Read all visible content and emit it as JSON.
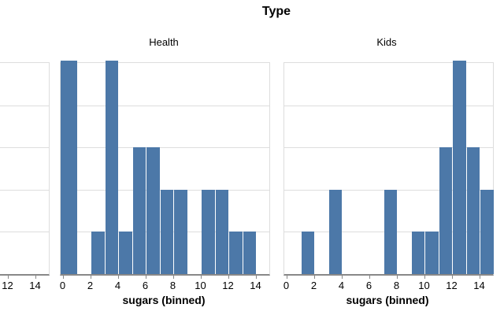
{
  "chart_data": {
    "type": "bar",
    "subtype": "faceted-histogram",
    "title": "Type",
    "x_axis": {
      "title": "sugars (binned)",
      "tick_values": [
        0,
        2,
        4,
        6,
        8,
        10,
        12,
        14
      ],
      "bin_width": 1,
      "domain": [
        -0.2,
        15.2
      ]
    },
    "y_axis": {
      "max": 5,
      "gridline_interval": 1,
      "labels_visible": false
    },
    "facets": [
      {
        "label": "Health",
        "counts": [
          5,
          0,
          1,
          5,
          1,
          3,
          3,
          2,
          2,
          0,
          2,
          2,
          1,
          1,
          0
        ]
      },
      {
        "label": "Kids",
        "counts": [
          0,
          1,
          0,
          2,
          0,
          0,
          0,
          2,
          0,
          1,
          1,
          3,
          5,
          3,
          2
        ]
      }
    ],
    "partial_facet": {
      "label": "",
      "visible_ticks": [
        12,
        14
      ],
      "counts": []
    },
    "legend": "none",
    "grid": "horizontal",
    "colors": {
      "bar": "#4c78a8",
      "gridline": "#dddddd",
      "panel_border": "#dddddd",
      "axis_domain": "#888888",
      "tick": "#888888",
      "text": "#000000",
      "background": "#ffffff"
    }
  }
}
